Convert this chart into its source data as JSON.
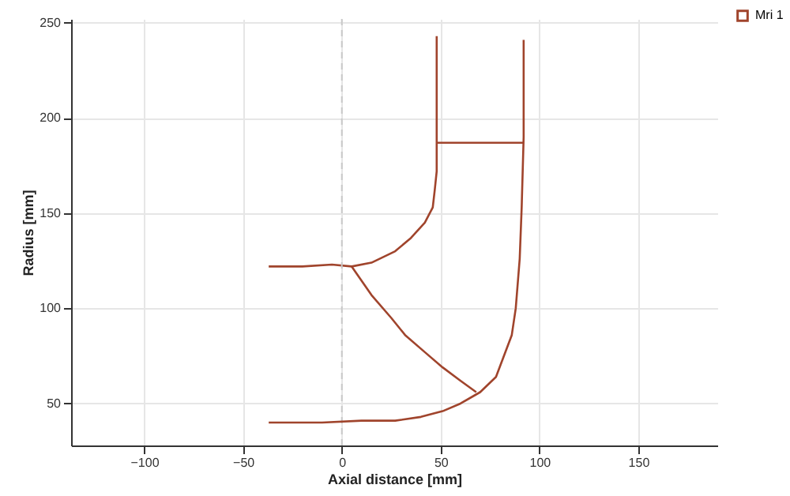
{
  "chart_data": {
    "type": "line",
    "xlabel": "Axial distance [mm]",
    "ylabel": "Radius [mm]",
    "xlim": [
      -137,
      190
    ],
    "ylim": [
      28,
      252
    ],
    "xticks": [
      -100,
      -50,
      0,
      50,
      100,
      150
    ],
    "yticks": [
      50,
      100,
      150,
      200,
      250
    ],
    "grid": true,
    "legend": "top right",
    "marker": "none",
    "line_style": "solid",
    "ref_lines": [
      {
        "axis": "x",
        "value": 0,
        "color": "#c8c8c8",
        "line_style": "dashed"
      }
    ],
    "series": [
      {
        "name": "Mri 1",
        "color": "#a0442c",
        "x": [
          -37,
          -20,
          -5,
          5,
          15,
          27,
          35,
          42,
          46,
          47,
          48,
          48
        ],
        "values": [
          122,
          122,
          123,
          122,
          124,
          130,
          137,
          145,
          153,
          162,
          172,
          243
        ]
      },
      {
        "color": "#a0442c",
        "x": [
          48,
          92
        ],
        "values": [
          187,
          187
        ]
      },
      {
        "color": "#a0442c",
        "x": [
          -37,
          -10,
          10,
          27,
          40,
          51,
          60,
          70,
          78,
          86,
          88,
          90,
          91,
          92,
          92
        ],
        "values": [
          40,
          40,
          41,
          41,
          43,
          46,
          50,
          56,
          64,
          86,
          100,
          126,
          153,
          190,
          241
        ]
      },
      {
        "color": "#a0442c",
        "x": [
          5,
          15,
          25,
          32,
          42,
          51,
          60,
          68
        ],
        "values": [
          122,
          107,
          95,
          86,
          77,
          69,
          62,
          56
        ]
      }
    ]
  }
}
